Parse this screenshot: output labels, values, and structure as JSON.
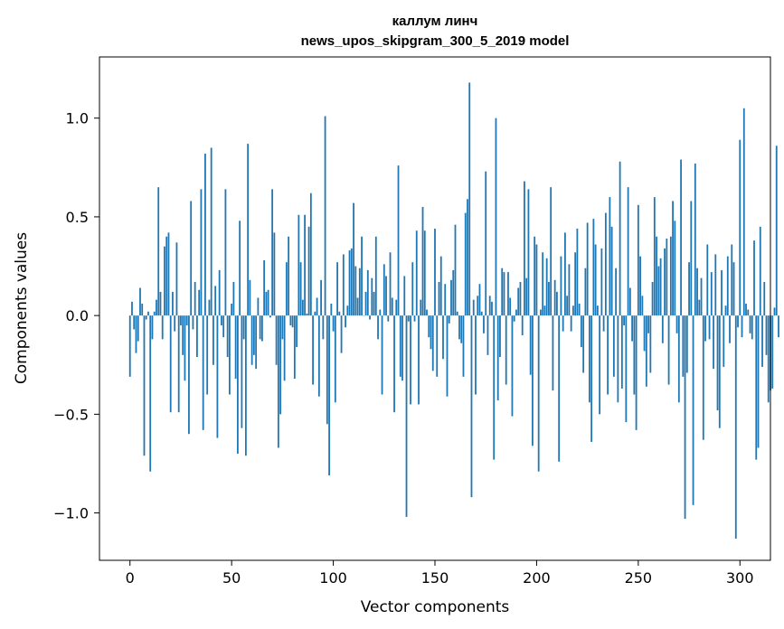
{
  "chart_data": {
    "type": "bar",
    "title": "каллум линч",
    "subtitle": "news_upos_skipgram_300_5_2019 model",
    "xlabel": "Vector components",
    "ylabel": "Components values",
    "xlim": [
      -15,
      315
    ],
    "ylim": [
      -1.24,
      1.31
    ],
    "xticks": [
      0,
      50,
      100,
      150,
      200,
      250,
      300
    ],
    "xtick_labels": [
      "0",
      "50",
      "100",
      "150",
      "200",
      "250",
      "300"
    ],
    "yticks": [
      -1.0,
      -0.5,
      0.0,
      0.5,
      1.0
    ],
    "ytick_labels": [
      "−1.0",
      "−0.5",
      "0.0",
      "0.5",
      "1.0"
    ],
    "grid": false,
    "color": "#1f77b4",
    "x_start": 0,
    "values": [
      -0.31,
      0.07,
      -0.07,
      -0.19,
      -0.13,
      0.14,
      0.06,
      -0.71,
      -0.02,
      0.02,
      -0.79,
      -0.12,
      0.02,
      0.08,
      0.65,
      0.12,
      -0.12,
      0.35,
      0.4,
      0.42,
      -0.49,
      0.12,
      -0.08,
      0.37,
      -0.49,
      -0.05,
      -0.2,
      -0.33,
      -0.05,
      -0.6,
      0.58,
      -0.07,
      0.17,
      -0.21,
      0.13,
      0.64,
      -0.58,
      0.82,
      -0.4,
      0.08,
      0.85,
      -0.25,
      0.15,
      -0.62,
      0.23,
      -0.05,
      -0.11,
      0.64,
      -0.21,
      -0.4,
      0.06,
      0.17,
      -0.32,
      -0.7,
      0.48,
      -0.57,
      -0.12,
      -0.71,
      0.87,
      0.18,
      -0.25,
      -0.2,
      -0.27,
      0.09,
      -0.12,
      -0.13,
      0.28,
      0.12,
      0.13,
      -0.01,
      0.64,
      0.42,
      -0.25,
      -0.67,
      -0.5,
      -0.12,
      -0.33,
      0.27,
      0.4,
      -0.05,
      -0.06,
      -0.32,
      -0.16,
      0.51,
      0.27,
      0.08,
      0.51,
      0.01,
      0.45,
      0.62,
      -0.35,
      0.02,
      0.09,
      -0.41,
      0.18,
      -0.12,
      1.01,
      -0.55,
      -0.81,
      0.06,
      -0.08,
      -0.44,
      0.27,
      0.02,
      -0.19,
      0.31,
      -0.06,
      0.05,
      0.33,
      0.34,
      0.57,
      0.25,
      0.09,
      0.24,
      0.4,
      0.0,
      0.12,
      0.23,
      -0.02,
      0.19,
      0.12,
      0.4,
      -0.12,
      0.03,
      -0.4,
      0.26,
      0.2,
      -0.03,
      0.32,
      0.09,
      -0.49,
      0.08,
      0.76,
      -0.31,
      -0.33,
      0.2,
      -1.02,
      -0.03,
      -0.45,
      0.27,
      -0.03,
      0.43,
      -0.45,
      0.08,
      0.55,
      0.43,
      0.03,
      -0.11,
      -0.17,
      -0.28,
      0.44,
      -0.31,
      0.17,
      0.3,
      -0.22,
      0.16,
      -0.41,
      -0.04,
      0.18,
      0.23,
      0.46,
      0.02,
      -0.12,
      -0.14,
      -0.31,
      0.52,
      0.59,
      1.18,
      -0.92,
      0.08,
      -0.4,
      0.1,
      0.16,
      0.02,
      -0.09,
      0.73,
      -0.2,
      0.1,
      0.07,
      -0.73,
      1.0,
      -0.43,
      -0.21,
      0.24,
      0.22,
      -0.35,
      0.22,
      0.09,
      -0.51,
      -0.03,
      0.03,
      0.14,
      0.17,
      -0.1,
      0.68,
      0.19,
      0.64,
      -0.3,
      -0.66,
      0.4,
      0.36,
      -0.79,
      0.03,
      0.32,
      0.05,
      0.29,
      0.17,
      0.65,
      -0.38,
      0.18,
      0.12,
      -0.74,
      0.3,
      -0.08,
      0.42,
      0.1,
      0.26,
      -0.08,
      0.05,
      0.32,
      0.44,
      0.06,
      -0.16,
      -0.29,
      0.24,
      0.47,
      -0.44,
      -0.64,
      0.49,
      0.36,
      0.05,
      -0.5,
      0.34,
      -0.08,
      0.52,
      -0.4,
      0.6,
      0.45,
      -0.31,
      0.24,
      -0.44,
      0.78,
      -0.37,
      -0.05,
      -0.54,
      0.65,
      0.14,
      -0.13,
      -0.4,
      -0.58,
      0.56,
      0.3,
      0.1,
      -0.18,
      -0.36,
      -0.09,
      -0.29,
      0.17,
      0.6,
      0.4,
      0.25,
      0.29,
      -0.14,
      0.34,
      0.39,
      -0.35,
      0.4,
      0.58,
      0.48,
      -0.09,
      -0.44,
      0.79,
      -0.31,
      -1.03,
      -0.29,
      0.27,
      0.58,
      -0.96,
      0.77,
      0.24,
      0.08,
      0.19,
      -0.63,
      -0.13,
      0.36,
      -0.12,
      0.22,
      -0.27,
      0.31,
      -0.48,
      -0.57,
      0.23,
      -0.26,
      0.05,
      0.3,
      -0.14,
      0.36,
      0.27,
      -1.13,
      -0.06,
      0.89,
      -0.11,
      1.05,
      0.06,
      0.03,
      -0.09,
      -0.12,
      0.38,
      -0.73,
      -0.67,
      0.45,
      -0.26,
      0.17,
      -0.2,
      -0.44,
      -0.38,
      -0.37,
      0.04,
      0.86,
      -0.11
    ]
  }
}
